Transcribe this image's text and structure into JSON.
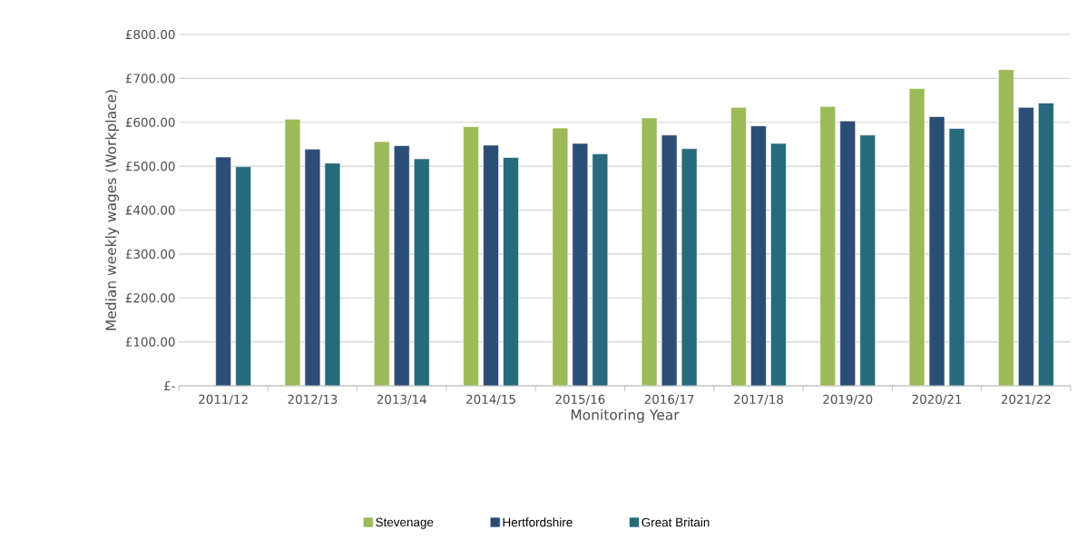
{
  "chart_data": {
    "type": "bar",
    "xlabel": "Monitoring Year",
    "ylabel": "Median weekly wages (Workplace)",
    "categories": [
      "2011/12",
      "2012/13",
      "2013/14",
      "2014/15",
      "2015/16",
      "2016/17",
      "2017/18",
      "2019/20",
      "2020/21",
      "2021/22"
    ],
    "series": [
      {
        "name": "Stevenage",
        "color": "#9bbb59",
        "values": [
          null,
          607,
          556,
          590,
          587,
          610,
          634,
          636,
          677,
          720
        ]
      },
      {
        "name": "Hertfordshire",
        "color": "#2c4d75",
        "values": [
          521,
          539,
          547,
          548,
          552,
          571,
          592,
          603,
          613,
          634
        ]
      },
      {
        "name": "Great Britain",
        "color": "#276a7c",
        "values": [
          499,
          507,
          517,
          520,
          528,
          540,
          552,
          571,
          586,
          644
        ]
      }
    ],
    "ylim": [
      0,
      800
    ],
    "yticks": [
      {
        "value": 0,
        "label": "£-"
      },
      {
        "value": 100,
        "label": "£100.00"
      },
      {
        "value": 200,
        "label": "£200.00"
      },
      {
        "value": 300,
        "label": "£300.00"
      },
      {
        "value": 400,
        "label": "£400.00"
      },
      {
        "value": 500,
        "label": "£500.00"
      },
      {
        "value": 600,
        "label": "£600.00"
      },
      {
        "value": 700,
        "label": "£700.00"
      },
      {
        "value": 800,
        "label": "£800.00"
      }
    ],
    "grid": "y",
    "legend": "bottom"
  }
}
